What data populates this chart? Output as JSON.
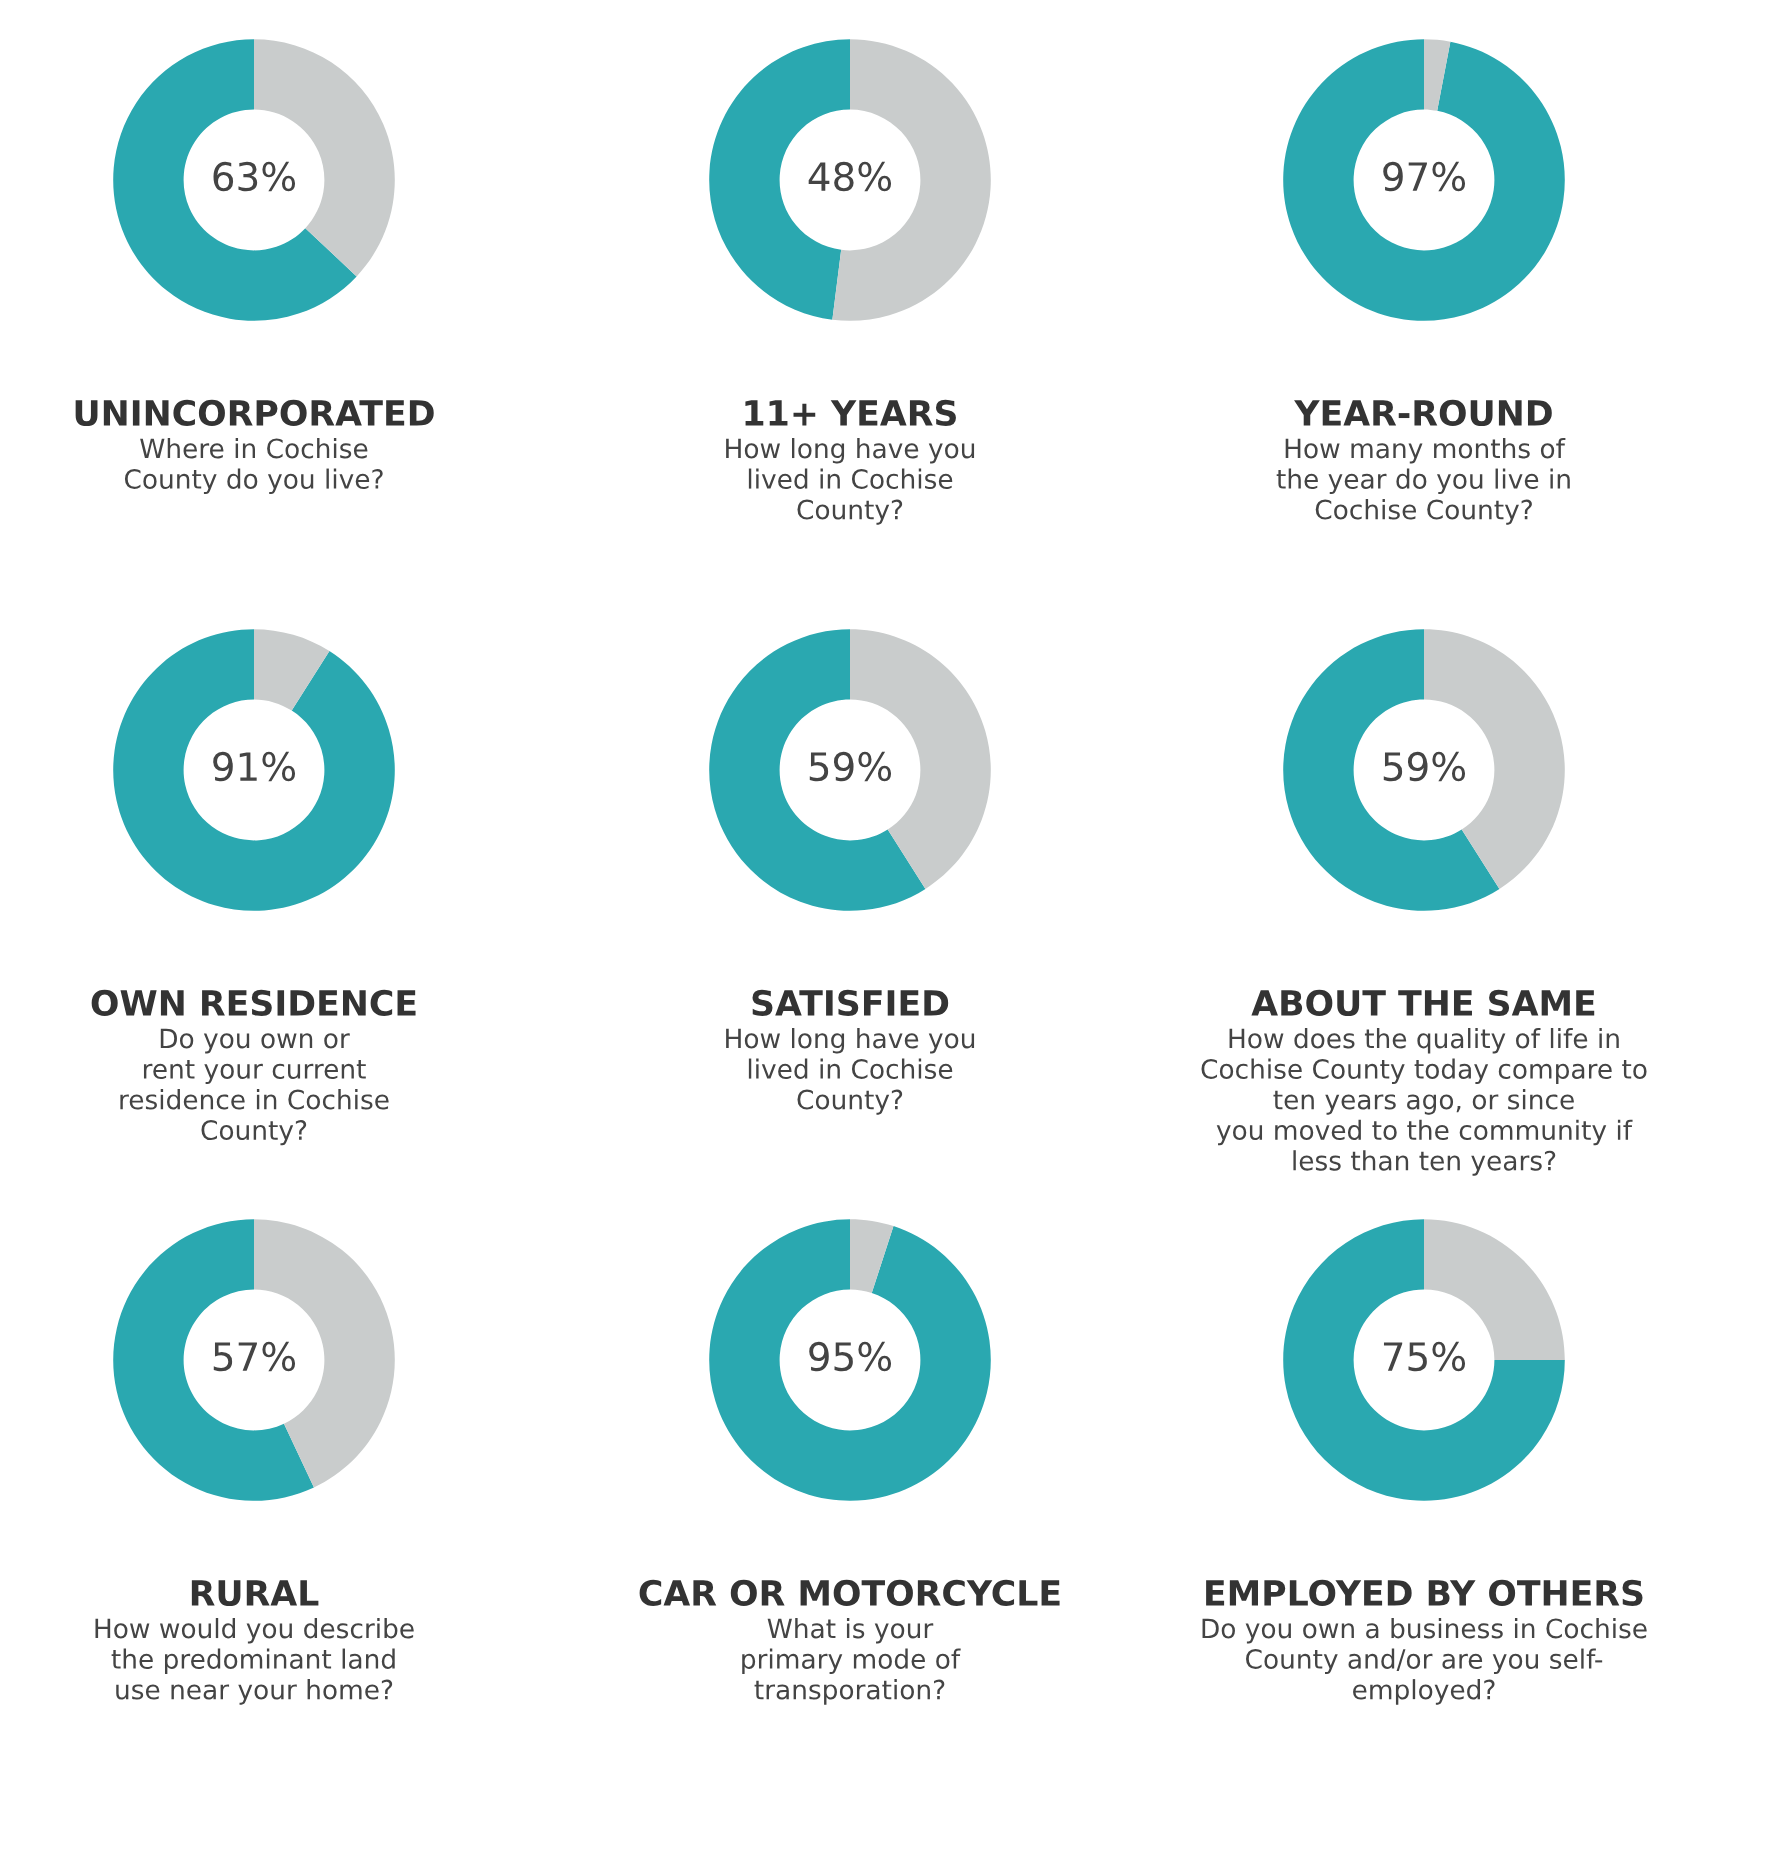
{
  "chart_data": [
    {
      "type": "donut",
      "title": "UNINCORPORATED",
      "subtitle": "Where in Cochise\nCounty do you live?",
      "categories": [
        null,
        null
      ],
      "values": [
        63,
        37
      ],
      "colors": [
        "#2aa8b0",
        "#c9cccc"
      ],
      "value_labels": [
        "63%",
        null
      ]
    },
    {
      "type": "donut",
      "title": "11+ YEARS",
      "subtitle": "How long have you\nlived in Cochise\nCounty?",
      "categories": [
        null,
        null
      ],
      "values": [
        48,
        52
      ],
      "colors": [
        "#2aa8b0",
        "#c9cccc"
      ],
      "value_labels": [
        "48%",
        null
      ]
    },
    {
      "type": "donut",
      "title": "YEAR-ROUND",
      "subtitle": "How many months of\nthe year do you live in\nCochise County?",
      "categories": [
        null,
        null
      ],
      "values": [
        97,
        3
      ],
      "colors": [
        "#2aa8b0",
        "#c9cccc"
      ],
      "value_labels": [
        "97%",
        null
      ]
    },
    {
      "type": "donut",
      "title": "OWN RESIDENCE",
      "subtitle": "Do you own or\nrent your current\nresidence in Cochise\nCounty?",
      "categories": [
        null,
        null
      ],
      "values": [
        91,
        9
      ],
      "colors": [
        "#2aa8b0",
        "#c9cccc"
      ],
      "value_labels": [
        "91%",
        null
      ]
    },
    {
      "type": "donut",
      "title": "SATISFIED",
      "subtitle": "How long have you\nlived in Cochise\nCounty?",
      "categories": [
        null,
        null
      ],
      "values": [
        59,
        41
      ],
      "colors": [
        "#2aa8b0",
        "#c9cccc"
      ],
      "value_labels": [
        "59%",
        null
      ]
    },
    {
      "type": "donut",
      "title": "ABOUT THE SAME",
      "subtitle": "How does the quality of life in\nCochise County today compare to\nten years ago, or since\nyou moved to the community if\nless than ten years?",
      "categories": [
        null,
        null
      ],
      "values": [
        59,
        41
      ],
      "colors": [
        "#2aa8b0",
        "#c9cccc"
      ],
      "value_labels": [
        "59%",
        null
      ]
    },
    {
      "type": "donut",
      "title": "RURAL",
      "subtitle": "How would you describe\nthe predominant land\nuse near your home?",
      "categories": [
        null,
        null
      ],
      "values": [
        57,
        43
      ],
      "colors": [
        "#2aa8b0",
        "#c9cccc"
      ],
      "value_labels": [
        "57%",
        null
      ]
    },
    {
      "type": "donut",
      "title": "CAR OR MOTORCYCLE",
      "subtitle": "What is your\nprimary mode of\ntransporation?",
      "categories": [
        null,
        null
      ],
      "values": [
        95,
        5
      ],
      "colors": [
        "#2aa8b0",
        "#c9cccc"
      ],
      "value_labels": [
        "95%",
        null
      ]
    },
    {
      "type": "donut",
      "title": "EMPLOYED BY OTHERS",
      "subtitle": "Do you own a business in Cochise\nCounty and/or are you self-\nemployed?",
      "categories": [
        null,
        null
      ],
      "values": [
        75,
        25
      ],
      "colors": [
        "#2aa8b0",
        "#c9cccc"
      ],
      "value_labels": [
        "75%",
        null
      ]
    }
  ]
}
